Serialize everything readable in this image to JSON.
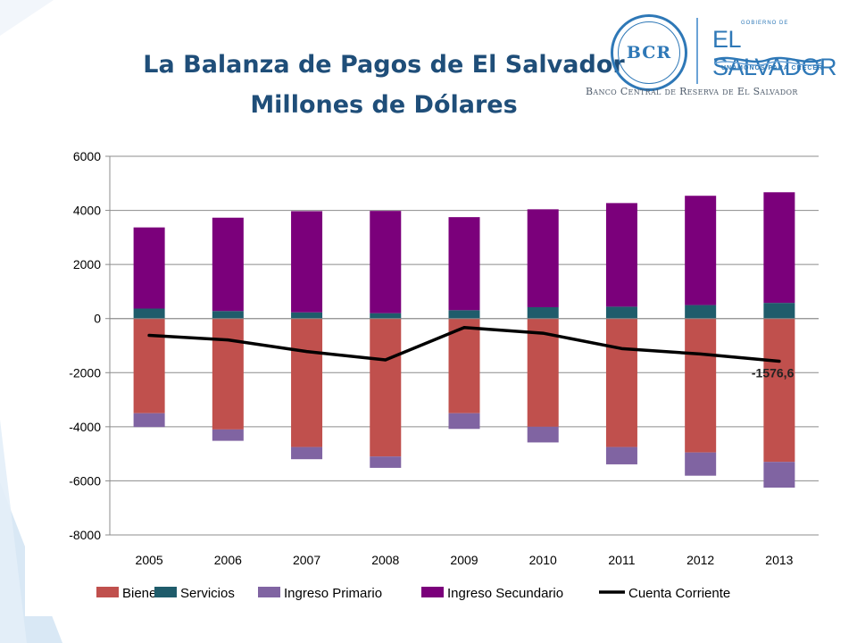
{
  "slide": {
    "title_line1": "La Balanza de Pagos de El Salvador",
    "title_line2": "Millones de Dólares"
  },
  "logo": {
    "monogram": "BCR",
    "small_text": "GOBIERNO DE",
    "name": "EL SALVADOR",
    "slogan": "UNÁMONOS PARA CRECER",
    "bank_name": "Banco Central de Reserva de El Salvador"
  },
  "chart_data": {
    "type": "bar",
    "stacked": true,
    "categories": [
      "2005",
      "2006",
      "2007",
      "2008",
      "2009",
      "2010",
      "2011",
      "2012",
      "2013"
    ],
    "ylim": [
      -8000,
      6000
    ],
    "yticks": [
      6000,
      4000,
      2000,
      0,
      -2000,
      -4000,
      -6000,
      -8000
    ],
    "grid": true,
    "legend_position": "bottom",
    "series": [
      {
        "name": "Bienes",
        "color": "#c0504d",
        "values": [
          -3500,
          -4100,
          -4750,
          -5100,
          -3500,
          -4000,
          -4750,
          -4950,
          -5300
        ]
      },
      {
        "name": "Servicios",
        "color": "#1f5c6b",
        "values": [
          370,
          280,
          230,
          200,
          310,
          420,
          440,
          500,
          580
        ]
      },
      {
        "name": "Ingreso Primario",
        "color": "#8064a2",
        "values": [
          -510,
          -420,
          -450,
          -420,
          -580,
          -580,
          -640,
          -860,
          -950
        ]
      },
      {
        "name": "Ingreso Secundario",
        "color": "#7b007b",
        "values": [
          3000,
          3450,
          3740,
          3780,
          3440,
          3620,
          3830,
          4040,
          4090
        ]
      },
      {
        "name": "Cuenta Corriente",
        "color": "#000000",
        "type": "line",
        "values": [
          -620,
          -790,
          -1220,
          -1530,
          -330,
          -540,
          -1110,
          -1310,
          -1576.6
        ]
      }
    ],
    "annotations": [
      {
        "category": "2013",
        "series": "Cuenta Corriente",
        "text": "-1576,6"
      }
    ]
  }
}
